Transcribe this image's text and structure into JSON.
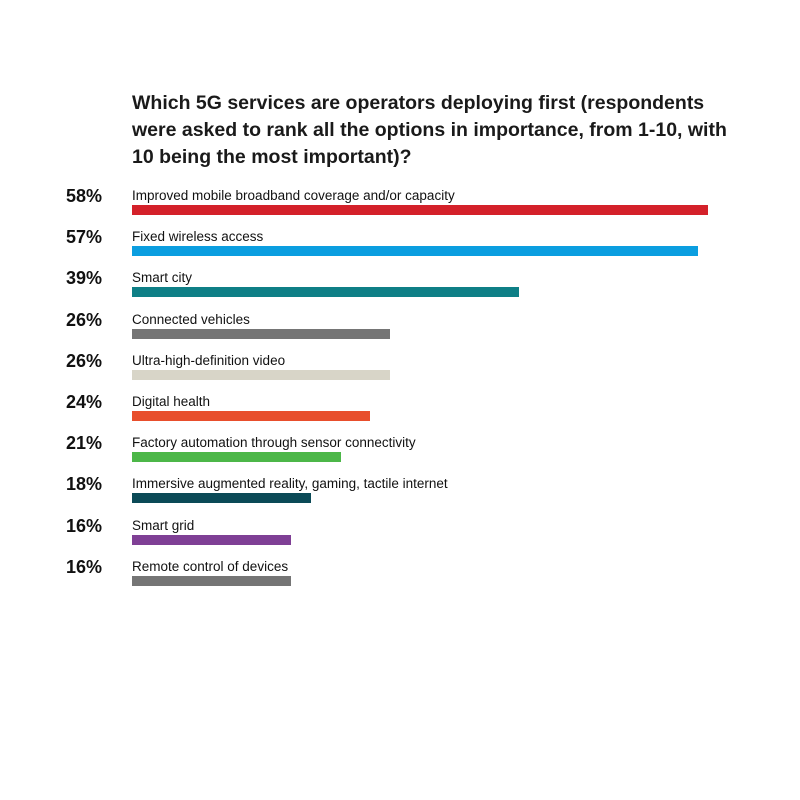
{
  "chart_data": {
    "type": "bar",
    "orientation": "horizontal",
    "title": "Which 5G services are operators deploying first (respondents were asked to rank all the options in importance, from 1-10, with 10 being the most important)?",
    "value_suffix": "%",
    "xlim": [
      0,
      58
    ],
    "grid": false,
    "legend": "none",
    "categories": [
      "Improved mobile broadband coverage and/or capacity",
      "Fixed wireless access",
      "Smart city",
      "Connected vehicles",
      "Ultra-high-definition video",
      "Digital health",
      "Factory automation through sensor connectivity",
      "Immersive augmented reality, gaming, tactile internet",
      "Smart grid",
      "Remote control of devices"
    ],
    "values": [
      58,
      57,
      39,
      26,
      26,
      24,
      21,
      18,
      16,
      16
    ],
    "colors": [
      "#d4212a",
      "#0b9ee0",
      "#0e7f86",
      "#757575",
      "#d8d5c8",
      "#e84e2c",
      "#4cb748",
      "#0b4a57",
      "#7f3f95",
      "#757575"
    ]
  }
}
